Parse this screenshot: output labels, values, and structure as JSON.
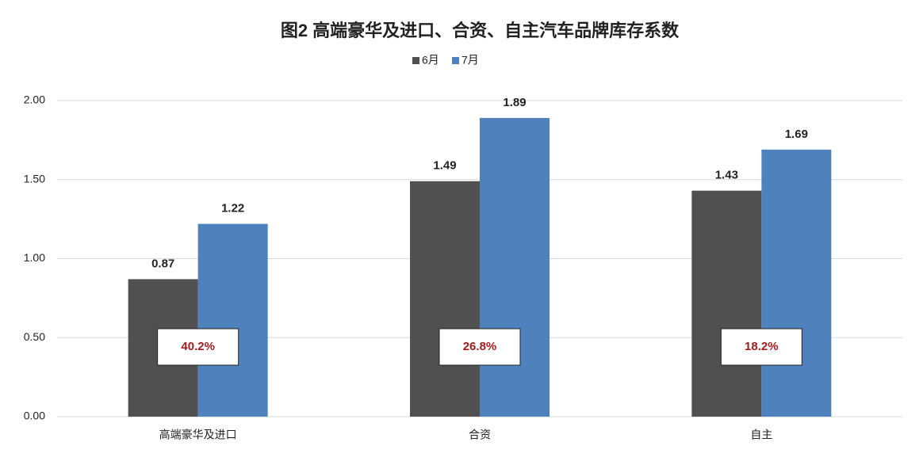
{
  "chart_data": {
    "type": "bar",
    "title": "图2  高端豪华及进口、合资、自主汽车品牌库存系数",
    "categories": [
      "高端豪华及进口",
      "合资",
      "自主"
    ],
    "series": [
      {
        "name": "6月",
        "color": "#505050",
        "values": [
          0.87,
          1.49,
          1.43
        ]
      },
      {
        "name": "7月",
        "color": "#4f81bd",
        "values": [
          1.22,
          1.89,
          1.69
        ]
      }
    ],
    "annotations": [
      "40.2%",
      "26.8%",
      "18.2%"
    ],
    "ylim": [
      0,
      2
    ],
    "yticks": [
      {
        "value": 0,
        "label": "0.00"
      },
      {
        "value": 0.5,
        "label": "0.50"
      },
      {
        "value": 1,
        "label": "1.00"
      },
      {
        "value": 1.5,
        "label": "1.50"
      },
      {
        "value": 2,
        "label": "2.00"
      }
    ],
    "grid": true,
    "legend": "top"
  }
}
